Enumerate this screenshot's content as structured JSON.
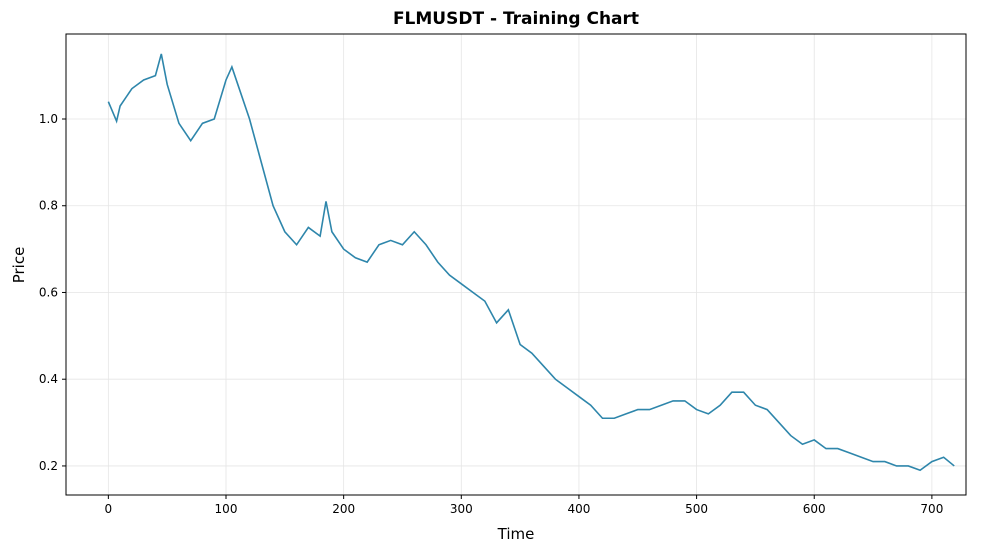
{
  "chart_data": {
    "type": "line",
    "title": "FLMUSDT - Training Chart",
    "x_label": "Time",
    "y_label": "Price",
    "x": [
      0,
      7,
      10,
      20,
      30,
      40,
      45,
      50,
      60,
      70,
      80,
      90,
      100,
      105,
      110,
      120,
      130,
      140,
      150,
      160,
      170,
      180,
      185,
      190,
      200,
      210,
      220,
      230,
      240,
      250,
      260,
      270,
      280,
      290,
      300,
      310,
      320,
      330,
      340,
      350,
      360,
      370,
      380,
      390,
      400,
      410,
      420,
      430,
      440,
      450,
      460,
      470,
      480,
      490,
      500,
      510,
      520,
      530,
      540,
      550,
      560,
      570,
      580,
      590,
      600,
      610,
      620,
      630,
      640,
      650,
      660,
      670,
      680,
      690,
      700,
      710,
      719
    ],
    "series": [
      {
        "name": "FLMUSDT",
        "color": "#2e86ab",
        "values": [
          1.04,
          0.995,
          1.03,
          1.07,
          1.09,
          1.1,
          1.15,
          1.08,
          0.99,
          0.95,
          0.99,
          1.0,
          1.09,
          1.12,
          1.08,
          1.0,
          0.9,
          0.8,
          0.74,
          0.71,
          0.75,
          0.73,
          0.81,
          0.74,
          0.7,
          0.68,
          0.67,
          0.71,
          0.72,
          0.71,
          0.74,
          0.71,
          0.67,
          0.64,
          0.62,
          0.6,
          0.58,
          0.53,
          0.56,
          0.48,
          0.46,
          0.43,
          0.4,
          0.38,
          0.36,
          0.34,
          0.31,
          0.31,
          0.32,
          0.33,
          0.33,
          0.34,
          0.35,
          0.35,
          0.33,
          0.32,
          0.34,
          0.37,
          0.37,
          0.34,
          0.33,
          0.3,
          0.27,
          0.25,
          0.26,
          0.24,
          0.24,
          0.23,
          0.22,
          0.21,
          0.21,
          0.2,
          0.2,
          0.19,
          0.21,
          0.22,
          0.2
        ]
      }
    ],
    "xlim": [
      -36,
      729
    ],
    "ylim": [
      0.133,
      1.196
    ],
    "xticks": [
      0,
      100,
      200,
      300,
      400,
      500,
      600,
      700
    ],
    "yticks": [
      0.2,
      0.4,
      0.6,
      0.8,
      {
        "value": 1,
        "label": "1.0"
      }
    ],
    "grid": true
  }
}
